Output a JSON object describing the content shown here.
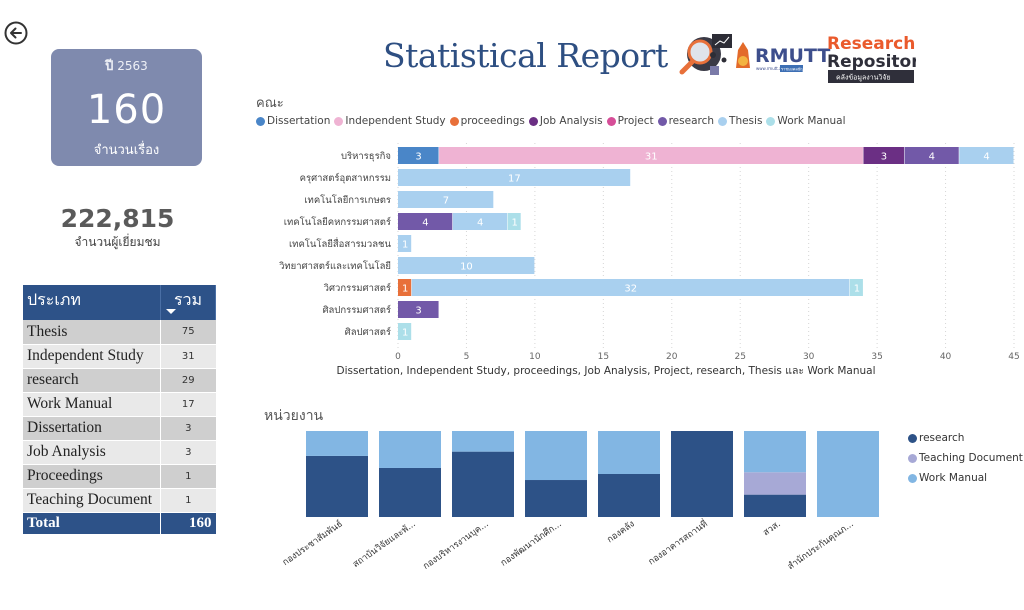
{
  "navigation": {
    "back_icon": "arrow-left-circle-icon"
  },
  "year_card": {
    "year_label": "ปี",
    "year": "2563",
    "count": "160",
    "caption": "จำนวนเรื่อง"
  },
  "visitors": {
    "count": "222,815",
    "caption": "จำนวนผู้เยี่ยมชม"
  },
  "type_table": {
    "headers": {
      "type": "ประเภท",
      "total": "รวม"
    },
    "sort_icon": "sort-descending-icon",
    "rows": [
      {
        "type": "Thesis",
        "total": "75"
      },
      {
        "type": "Independent Study",
        "total": "31"
      },
      {
        "type": "research",
        "total": "29"
      },
      {
        "type": "Work Manual",
        "total": "17"
      },
      {
        "type": "Dissertation",
        "total": "3"
      },
      {
        "type": "Job Analysis",
        "total": "3"
      },
      {
        "type": "Proceedings",
        "total": "1"
      },
      {
        "type": "Teaching Document",
        "total": "1"
      }
    ],
    "footer": {
      "label": "Total",
      "total": "160"
    }
  },
  "header": {
    "title": "Statistical Report",
    "logo": {
      "org": "RMUTT",
      "line1": "Research",
      "line2": "Repository",
      "tagline": "คลังข้อมูลงานวิจัย",
      "url_text": "www.rmutt.ac.th",
      "badge": "ราชมงคลธัญบุรี"
    }
  },
  "colors": {
    "Dissertation": "#4a86c8",
    "Independent Study": "#efb3d3",
    "proceedings": "#e8703a",
    "Job Analysis": "#6b2f84",
    "Project": "#d64e98",
    "research": "#7259a8",
    "Thesis": "#a9d0ef",
    "Work Manual": "#acdfe9"
  },
  "chart_data": [
    {
      "type": "bar",
      "orientation": "horizontal",
      "stacked": true,
      "title": "คณะ",
      "xlabel": "Dissertation, Independent Study, proceedings, Job Analysis, Project, research, Thesis และ Work Manual",
      "ylabel": "",
      "xlim": [
        0,
        45
      ],
      "xticks": [
        0,
        5,
        10,
        15,
        20,
        25,
        30,
        35,
        40,
        45
      ],
      "grid": true,
      "legend_position": "top-left",
      "legend": [
        "Dissertation",
        "Independent Study",
        "proceedings",
        "Job Analysis",
        "Project",
        "research",
        "Thesis",
        "Work Manual"
      ],
      "categories": [
        "บริหารธุรกิจ",
        "ครุศาสตร์อุตสาหกรรม",
        "เทคโนโลยีการเกษตร",
        "เทคโนโลยีคหกรรมศาสตร์",
        "เทคโนโลยีสื่อสารมวลชน",
        "วิทยาศาสตร์และเทคโนโลยี",
        "วิศวกรรมศาสตร์",
        "ศิลปกรรมศาสตร์",
        "ศิลปศาสตร์"
      ],
      "series": [
        {
          "name": "Dissertation",
          "values": [
            3,
            0,
            0,
            0,
            0,
            0,
            0,
            0,
            0
          ]
        },
        {
          "name": "Independent Study",
          "values": [
            31,
            0,
            0,
            0,
            0,
            0,
            0,
            0,
            0
          ]
        },
        {
          "name": "proceedings",
          "values": [
            0,
            0,
            0,
            0,
            0,
            0,
            1,
            0,
            0
          ]
        },
        {
          "name": "Job Analysis",
          "values": [
            3,
            0,
            0,
            0,
            0,
            0,
            0,
            0,
            0
          ]
        },
        {
          "name": "Project",
          "values": [
            0,
            0,
            0,
            0,
            0,
            0,
            0,
            0,
            0
          ]
        },
        {
          "name": "research",
          "values": [
            4,
            0,
            0,
            4,
            0,
            0,
            0,
            3,
            0
          ]
        },
        {
          "name": "Thesis",
          "values": [
            4,
            17,
            7,
            4,
            1,
            10,
            32,
            0,
            0
          ]
        },
        {
          "name": "Work Manual",
          "values": [
            0,
            0,
            0,
            1,
            0,
            0,
            1,
            0,
            1
          ]
        }
      ]
    },
    {
      "type": "bar",
      "orientation": "vertical",
      "stacked": true,
      "normalized": "100%",
      "title": "หน่วยงาน",
      "xlabel": "",
      "ylabel": "",
      "legend_position": "right",
      "legend": [
        "research",
        "Teaching Document",
        "Work Manual"
      ],
      "series_colors": {
        "research": "#2d5287",
        "Teaching Document": "#a7a9d6",
        "Work Manual": "#82b6e3"
      },
      "categories": [
        "กองประชาสัมพันธ์",
        "สถาบันวิจัยและพั...",
        "กองบริหารงานบุค...",
        "กองพัฒนานักศึก...",
        "กองคลัง",
        "กองอาคารสถานที่",
        "สวส.",
        "สำนักประกันคุณภ..."
      ],
      "series": [
        {
          "name": "research",
          "values": [
            0.71,
            0.57,
            0.76,
            0.43,
            0.5,
            1.0,
            0.26,
            0
          ]
        },
        {
          "name": "Teaching Document",
          "values": [
            0,
            0,
            0,
            0,
            0,
            0,
            0.26,
            0
          ]
        },
        {
          "name": "Work Manual",
          "values": [
            0.29,
            0.43,
            0.24,
            0.57,
            0.5,
            0,
            0.48,
            1.0
          ]
        }
      ]
    }
  ]
}
